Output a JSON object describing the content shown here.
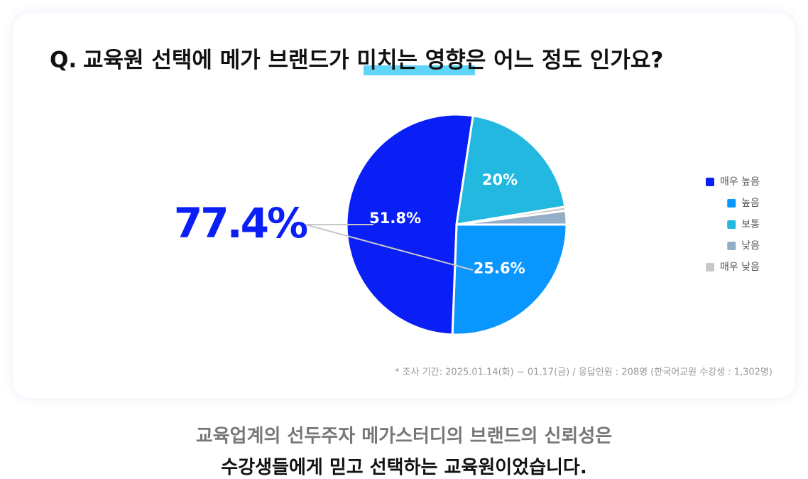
{
  "chart_data": {
    "type": "pie",
    "question_marker": "Q.",
    "title_parts": [
      "교육원 선택에 메가 브랜드가 ",
      "미치는 영향",
      "은 어느 정도 인가요?"
    ],
    "categories": [
      "높음",
      "매우 높음",
      "보통",
      "매우 낮음",
      "낮음"
    ],
    "values": [
      25.6,
      51.8,
      20,
      0.6,
      2.0
    ],
    "value_labels": [
      "25.6%",
      "51.8%",
      "20%",
      null,
      null
    ],
    "colors": [
      "#0a96ff",
      "#0a1ff5",
      "#22b8e0",
      "#c8c8c8",
      "#95aec8"
    ],
    "legend_order": [
      1,
      0,
      2,
      4,
      3
    ],
    "annotation": "77.4%"
  },
  "footnote": "* 조사 기간: 2025.01.14(화) ~ 01.17(금)  /  응답인원 : 208명 (한국어교원 수강생 : 1,302명)",
  "caption": [
    "교육업계의 선두주자 메가스터디의 브랜드의 신뢰성은",
    "수강생들에게 믿고 선택하는 교육원이었습니다."
  ]
}
